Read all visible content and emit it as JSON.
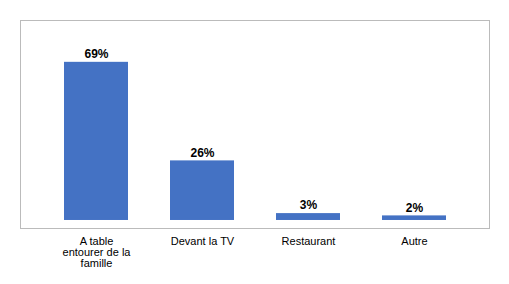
{
  "chart_data": {
    "type": "bar",
    "categories": [
      "A table\nentourer de la\nfamille",
      "Devant la TV",
      "Restaurant",
      "Autre"
    ],
    "values": [
      69,
      26,
      3,
      2
    ],
    "value_labels": [
      "69%",
      "26%",
      "3%",
      "2%"
    ],
    "data_labels": true,
    "color": "#4472C4",
    "ylim": [
      -3.5,
      87.25
    ],
    "tick_labels": "x",
    "grid": false
  }
}
